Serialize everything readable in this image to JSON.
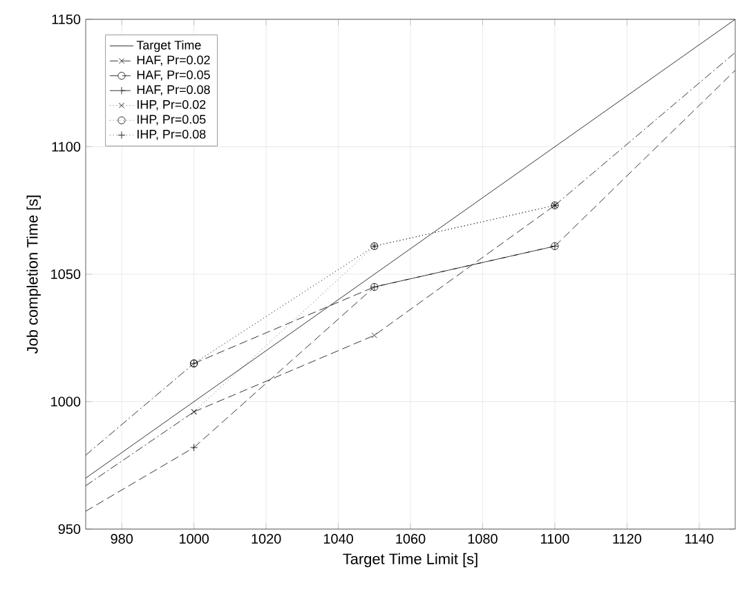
{
  "chart_data": {
    "type": "line",
    "xlabel": "Target Time Limit [s]",
    "ylabel": "Job completion Time [s]",
    "xlim": [
      970,
      1150
    ],
    "ylim": [
      950,
      1150
    ],
    "xticks": [
      980,
      1000,
      1020,
      1040,
      1060,
      1080,
      1100,
      1120,
      1140
    ],
    "yticks": [
      950,
      1000,
      1050,
      1100,
      1150
    ],
    "grid": true,
    "legend": "top left",
    "series": [
      {
        "name": "Target Time",
        "color": "#000000",
        "x": [
          970,
          1150
        ],
        "values": [
          970,
          1150
        ],
        "line_style": "solid",
        "marker": "none"
      },
      {
        "name": "HAF, Pr=0.02",
        "color": "#000000",
        "x": [
          1000,
          1050,
          1100
        ],
        "values": [
          996,
          1026,
          1077
        ],
        "line_style": "dashed",
        "marker": "cross"
      },
      {
        "name": "HAF, Pr=0.05",
        "color": "#000000",
        "x": [
          1000,
          1050,
          1100
        ],
        "values": [
          1015,
          1045,
          1061
        ],
        "line_style": "dashed",
        "marker": "circle"
      },
      {
        "name": "HAF, Pr=0.08",
        "color": "#000000",
        "x": [
          1000,
          1050,
          1100
        ],
        "values": [
          982,
          1045,
          1061
        ],
        "line_style": "dashed",
        "marker": "plus"
      },
      {
        "name": "IHP, Pr=0.02",
        "color": "#000000",
        "x": [
          1000,
          1050,
          1100
        ],
        "values": [
          996,
          1061,
          1077
        ],
        "line_style": "dotted",
        "marker": "cross"
      },
      {
        "name": "IHP, Pr=0.05",
        "color": "#000000",
        "x": [
          1000,
          1050,
          1100
        ],
        "values": [
          1015,
          1061,
          1077
        ],
        "line_style": "dotted",
        "marker": "circle"
      },
      {
        "name": "IHP, Pr=0.08",
        "color": "#000000",
        "x": [
          1000,
          1050,
          1100
        ],
        "values": [
          1015,
          1061,
          1077
        ],
        "line_style": "dotted",
        "marker": "plus"
      },
      {
        "color": "#000000",
        "x": [
          970,
          1000
        ],
        "values": [
          979,
          1015
        ],
        "line_style": "dashdot",
        "marker": "none"
      },
      {
        "color": "#000000",
        "x": [
          970,
          1000
        ],
        "values": [
          967,
          996
        ],
        "line_style": "dashdot",
        "marker": "none"
      },
      {
        "color": "#000000",
        "x": [
          970,
          1000
        ],
        "values": [
          957,
          982
        ],
        "line_style": "dashed",
        "marker": "none"
      },
      {
        "color": "#000000",
        "x": [
          1100,
          1150
        ],
        "values": [
          1077,
          1137
        ],
        "line_style": "dashdot",
        "marker": "none"
      },
      {
        "color": "#000000",
        "x": [
          1100,
          1150
        ],
        "values": [
          1061,
          1130
        ],
        "line_style": "dashed",
        "marker": "none"
      }
    ]
  }
}
